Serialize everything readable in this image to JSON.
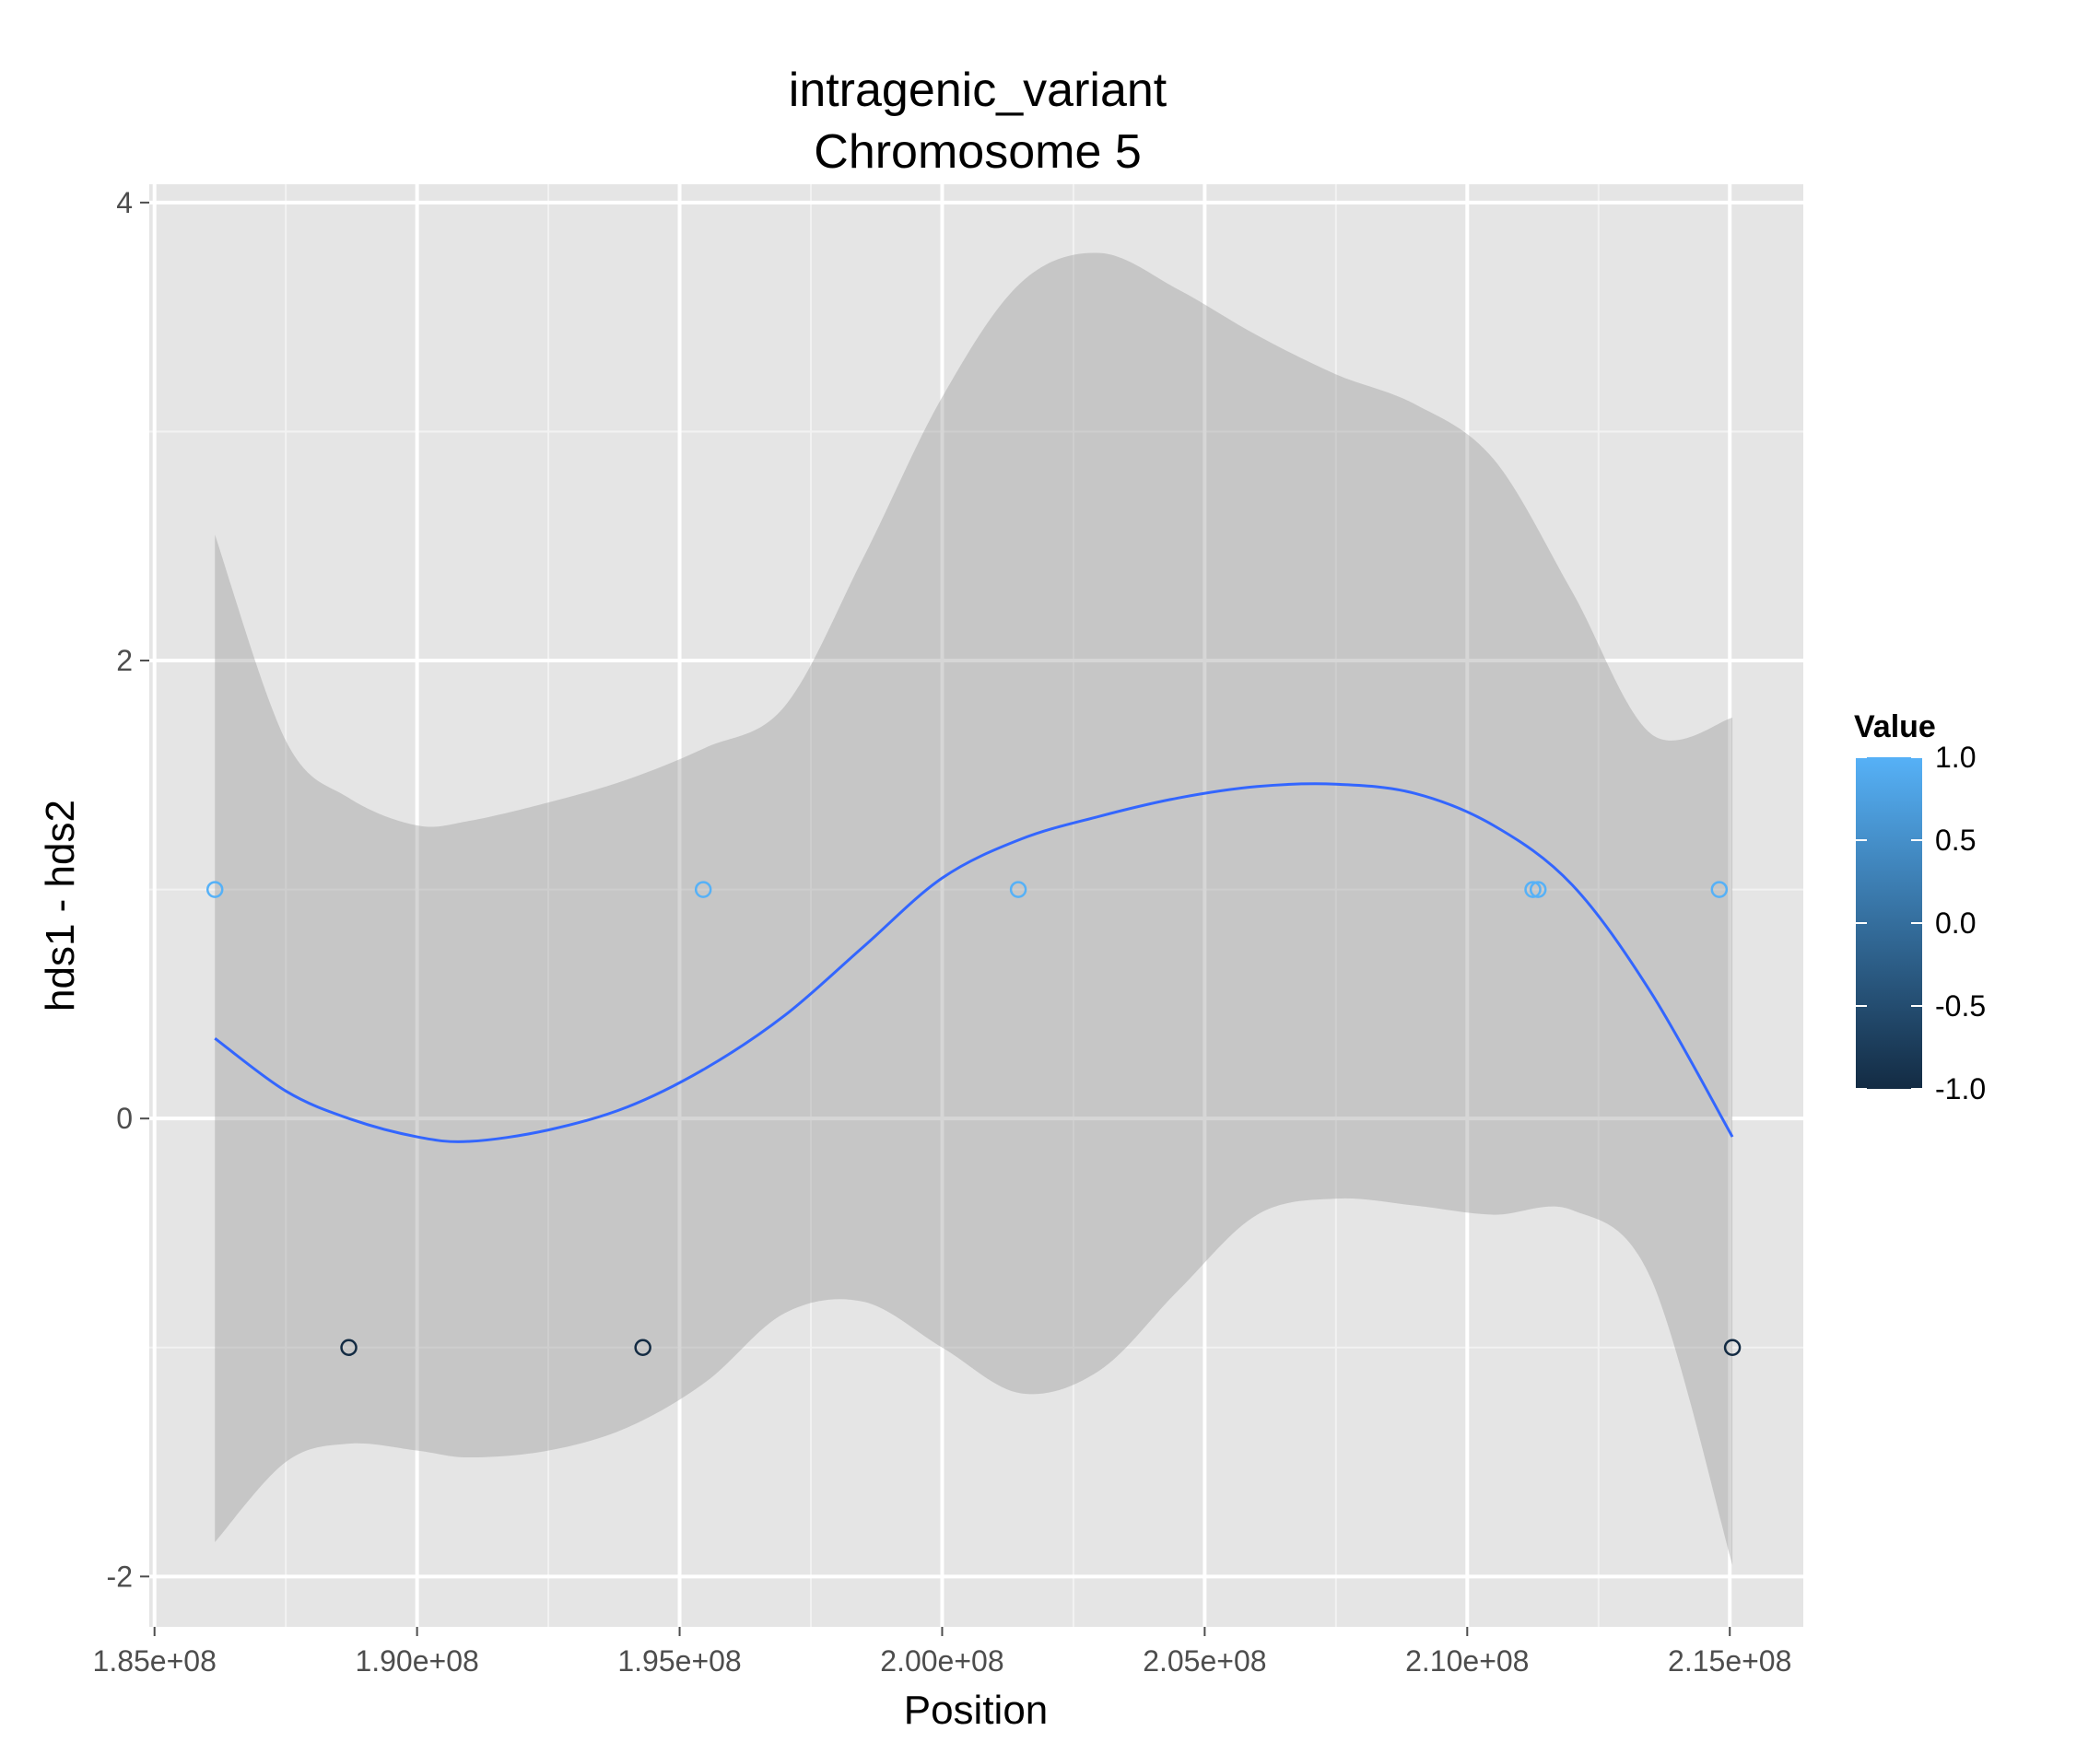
{
  "chart_data": {
    "type": "scatter",
    "title_line1": "intragenic_variant",
    "title_line2": "Chromosome 5",
    "xlabel": "Position",
    "ylabel": "hds1 - hds2",
    "xlim": [
      184900000,
      216400000
    ],
    "ylim": [
      -2.22,
      4.08
    ],
    "x_ticks": [
      185000000,
      190000000,
      195000000,
      200000000,
      205000000,
      210000000,
      215000000
    ],
    "x_tick_labels": [
      "1.85e+08",
      "1.90e+08",
      "1.95e+08",
      "2.00e+08",
      "2.05e+08",
      "2.10e+08",
      "2.15e+08"
    ],
    "y_ticks": [
      -2,
      0,
      2,
      4
    ],
    "y_tick_labels": [
      "-2",
      "0",
      "2",
      "4"
    ],
    "grid": true,
    "legend": {
      "title": "Value",
      "placement": "right",
      "low_color": "#132B43",
      "high_color": "#56B1F7",
      "range": [
        -1,
        1
      ],
      "breaks": [
        1.0,
        0.5,
        0.0,
        -0.5,
        -1.0
      ],
      "labels": [
        "1.0",
        "0.5",
        "0.0",
        "-0.5",
        "-1.0"
      ]
    },
    "points": [
      {
        "x": 186150000,
        "y": 1,
        "value": 1
      },
      {
        "x": 188700000,
        "y": -1,
        "value": -1
      },
      {
        "x": 194300000,
        "y": -1,
        "value": -1
      },
      {
        "x": 195450000,
        "y": 1,
        "value": 1
      },
      {
        "x": 201450000,
        "y": 1,
        "value": 1
      },
      {
        "x": 211250000,
        "y": 1,
        "value": 1
      },
      {
        "x": 211350000,
        "y": 1,
        "value": 1
      },
      {
        "x": 214800000,
        "y": 1,
        "value": 1
      },
      {
        "x": 215050000,
        "y": -1,
        "value": -1
      }
    ],
    "smooth": {
      "color": "#3366FF",
      "band_color": "#999999",
      "x": [
        186150000,
        187500000,
        188700000,
        190000000,
        191000000,
        192500000,
        194000000,
        195500000,
        197000000,
        198500000,
        200000000,
        201500000,
        203000000,
        204500000,
        206000000,
        207500000,
        209000000,
        210500000,
        212000000,
        213500000,
        215050000
      ],
      "y": [
        0.35,
        0.12,
        0.0,
        -0.08,
        -0.1,
        -0.05,
        0.05,
        0.22,
        0.45,
        0.75,
        1.05,
        1.22,
        1.32,
        1.4,
        1.45,
        1.46,
        1.42,
        1.28,
        1.02,
        0.55,
        -0.08
      ],
      "upper": [
        2.55,
        1.65,
        1.4,
        1.28,
        1.3,
        1.38,
        1.48,
        1.62,
        1.8,
        2.45,
        3.15,
        3.65,
        3.78,
        3.62,
        3.42,
        3.25,
        3.12,
        2.88,
        2.3,
        1.68,
        1.75
      ],
      "lower": [
        -1.85,
        -1.5,
        -1.42,
        -1.45,
        -1.48,
        -1.45,
        -1.35,
        -1.15,
        -0.85,
        -0.8,
        -1.0,
        -1.2,
        -1.1,
        -0.75,
        -0.42,
        -0.35,
        -0.38,
        -0.42,
        -0.4,
        -0.7,
        -1.95
      ]
    }
  }
}
